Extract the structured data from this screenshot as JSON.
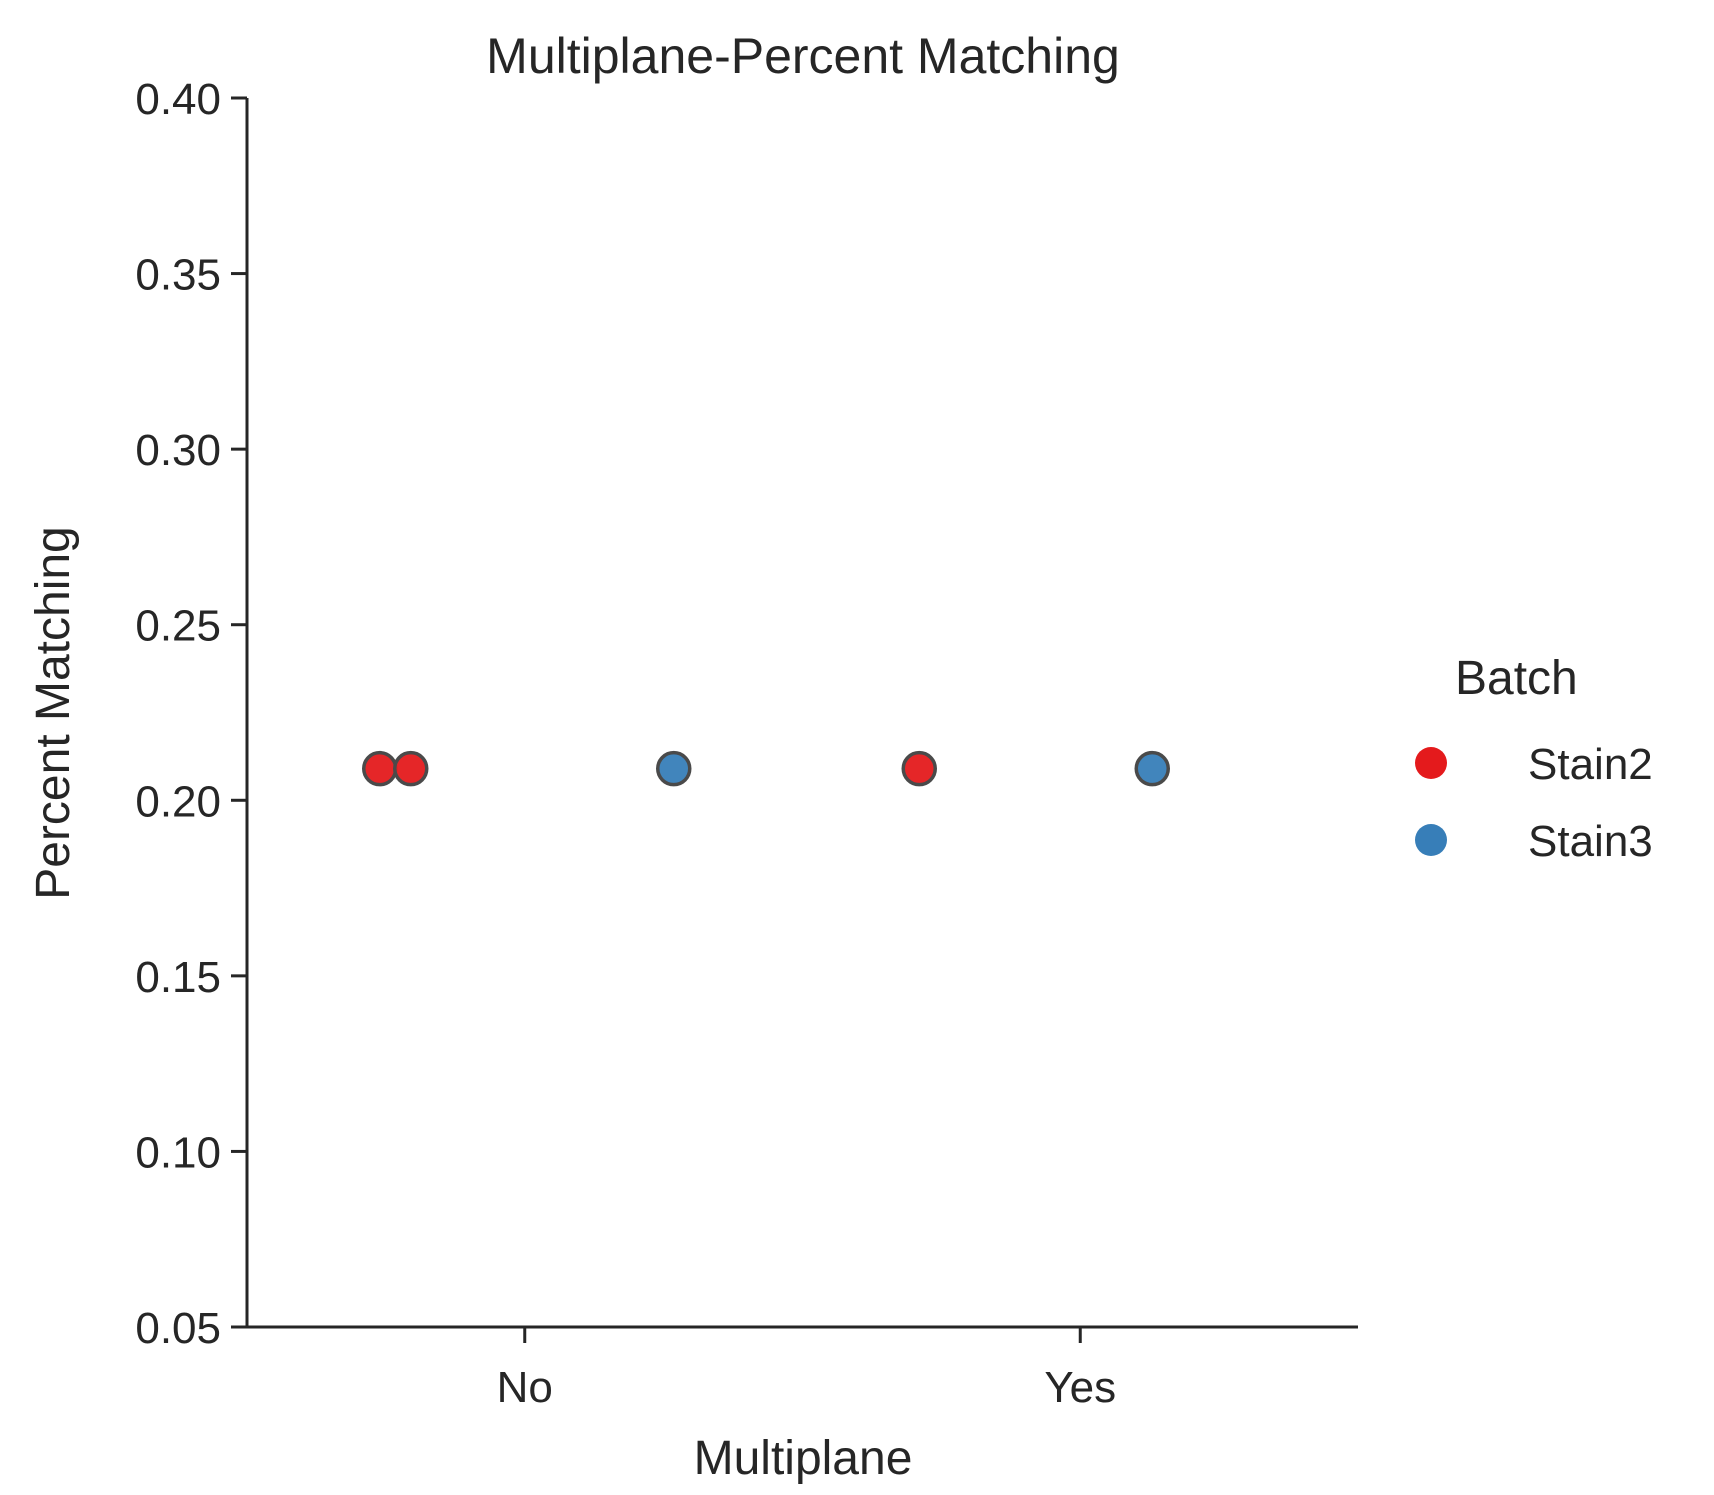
{
  "chart_data": {
    "type": "scatter",
    "title": "Multiplane-Percent Matching",
    "xlabel": "Multiplane",
    "ylabel": "Percent Matching",
    "categories": [
      "No",
      "Yes"
    ],
    "ylim": [
      0.05,
      0.4
    ],
    "yticks": [
      "0.05",
      "0.10",
      "0.15",
      "0.20",
      "0.25",
      "0.30",
      "0.35",
      "0.40"
    ],
    "grid": false,
    "legend": {
      "title": "Batch",
      "placement": "right"
    },
    "series": [
      {
        "name": "Stain2",
        "color": "#e41a1c",
        "points": [
          {
            "x": "No",
            "y": 0.209
          },
          {
            "x": "No",
            "y": 0.209
          },
          {
            "x": "Yes",
            "y": 0.209
          }
        ]
      },
      {
        "name": "Stain3",
        "color": "#377eb8",
        "points": [
          {
            "x": "No",
            "y": 0.209
          },
          {
            "x": "Yes",
            "y": 0.209
          }
        ]
      }
    ]
  }
}
